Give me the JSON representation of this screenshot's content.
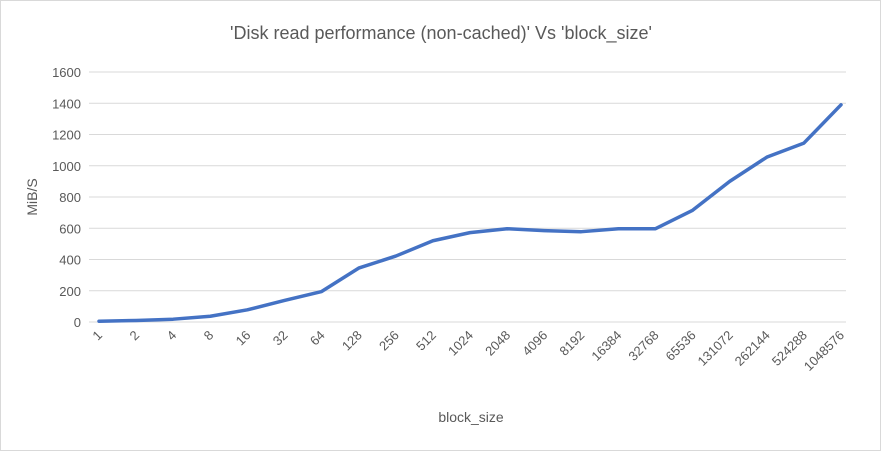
{
  "chart_data": {
    "type": "line",
    "title": "'Disk read performance (non-cached)' Vs 'block_size'",
    "xlabel": "block_size",
    "ylabel": "MiB/S",
    "ylim": [
      0,
      1600
    ],
    "yticks": [
      0,
      200,
      400,
      600,
      800,
      1000,
      1200,
      1400,
      1600
    ],
    "grid": true,
    "legend": "none",
    "categories": [
      "1",
      "2",
      "4",
      "8",
      "16",
      "32",
      "64",
      "128",
      "256",
      "512",
      "1024",
      "2048",
      "4096",
      "8192",
      "16384",
      "32768",
      "65536",
      "131072",
      "262144",
      "524288",
      "1048576"
    ],
    "series": [
      {
        "color": "#4472c4",
        "values": [
          5,
          10,
          18,
          37,
          78,
          138,
          195,
          345,
          422,
          520,
          572,
          597,
          585,
          578,
          597,
          597,
          715,
          900,
          1055,
          1145,
          1390
        ]
      }
    ]
  }
}
